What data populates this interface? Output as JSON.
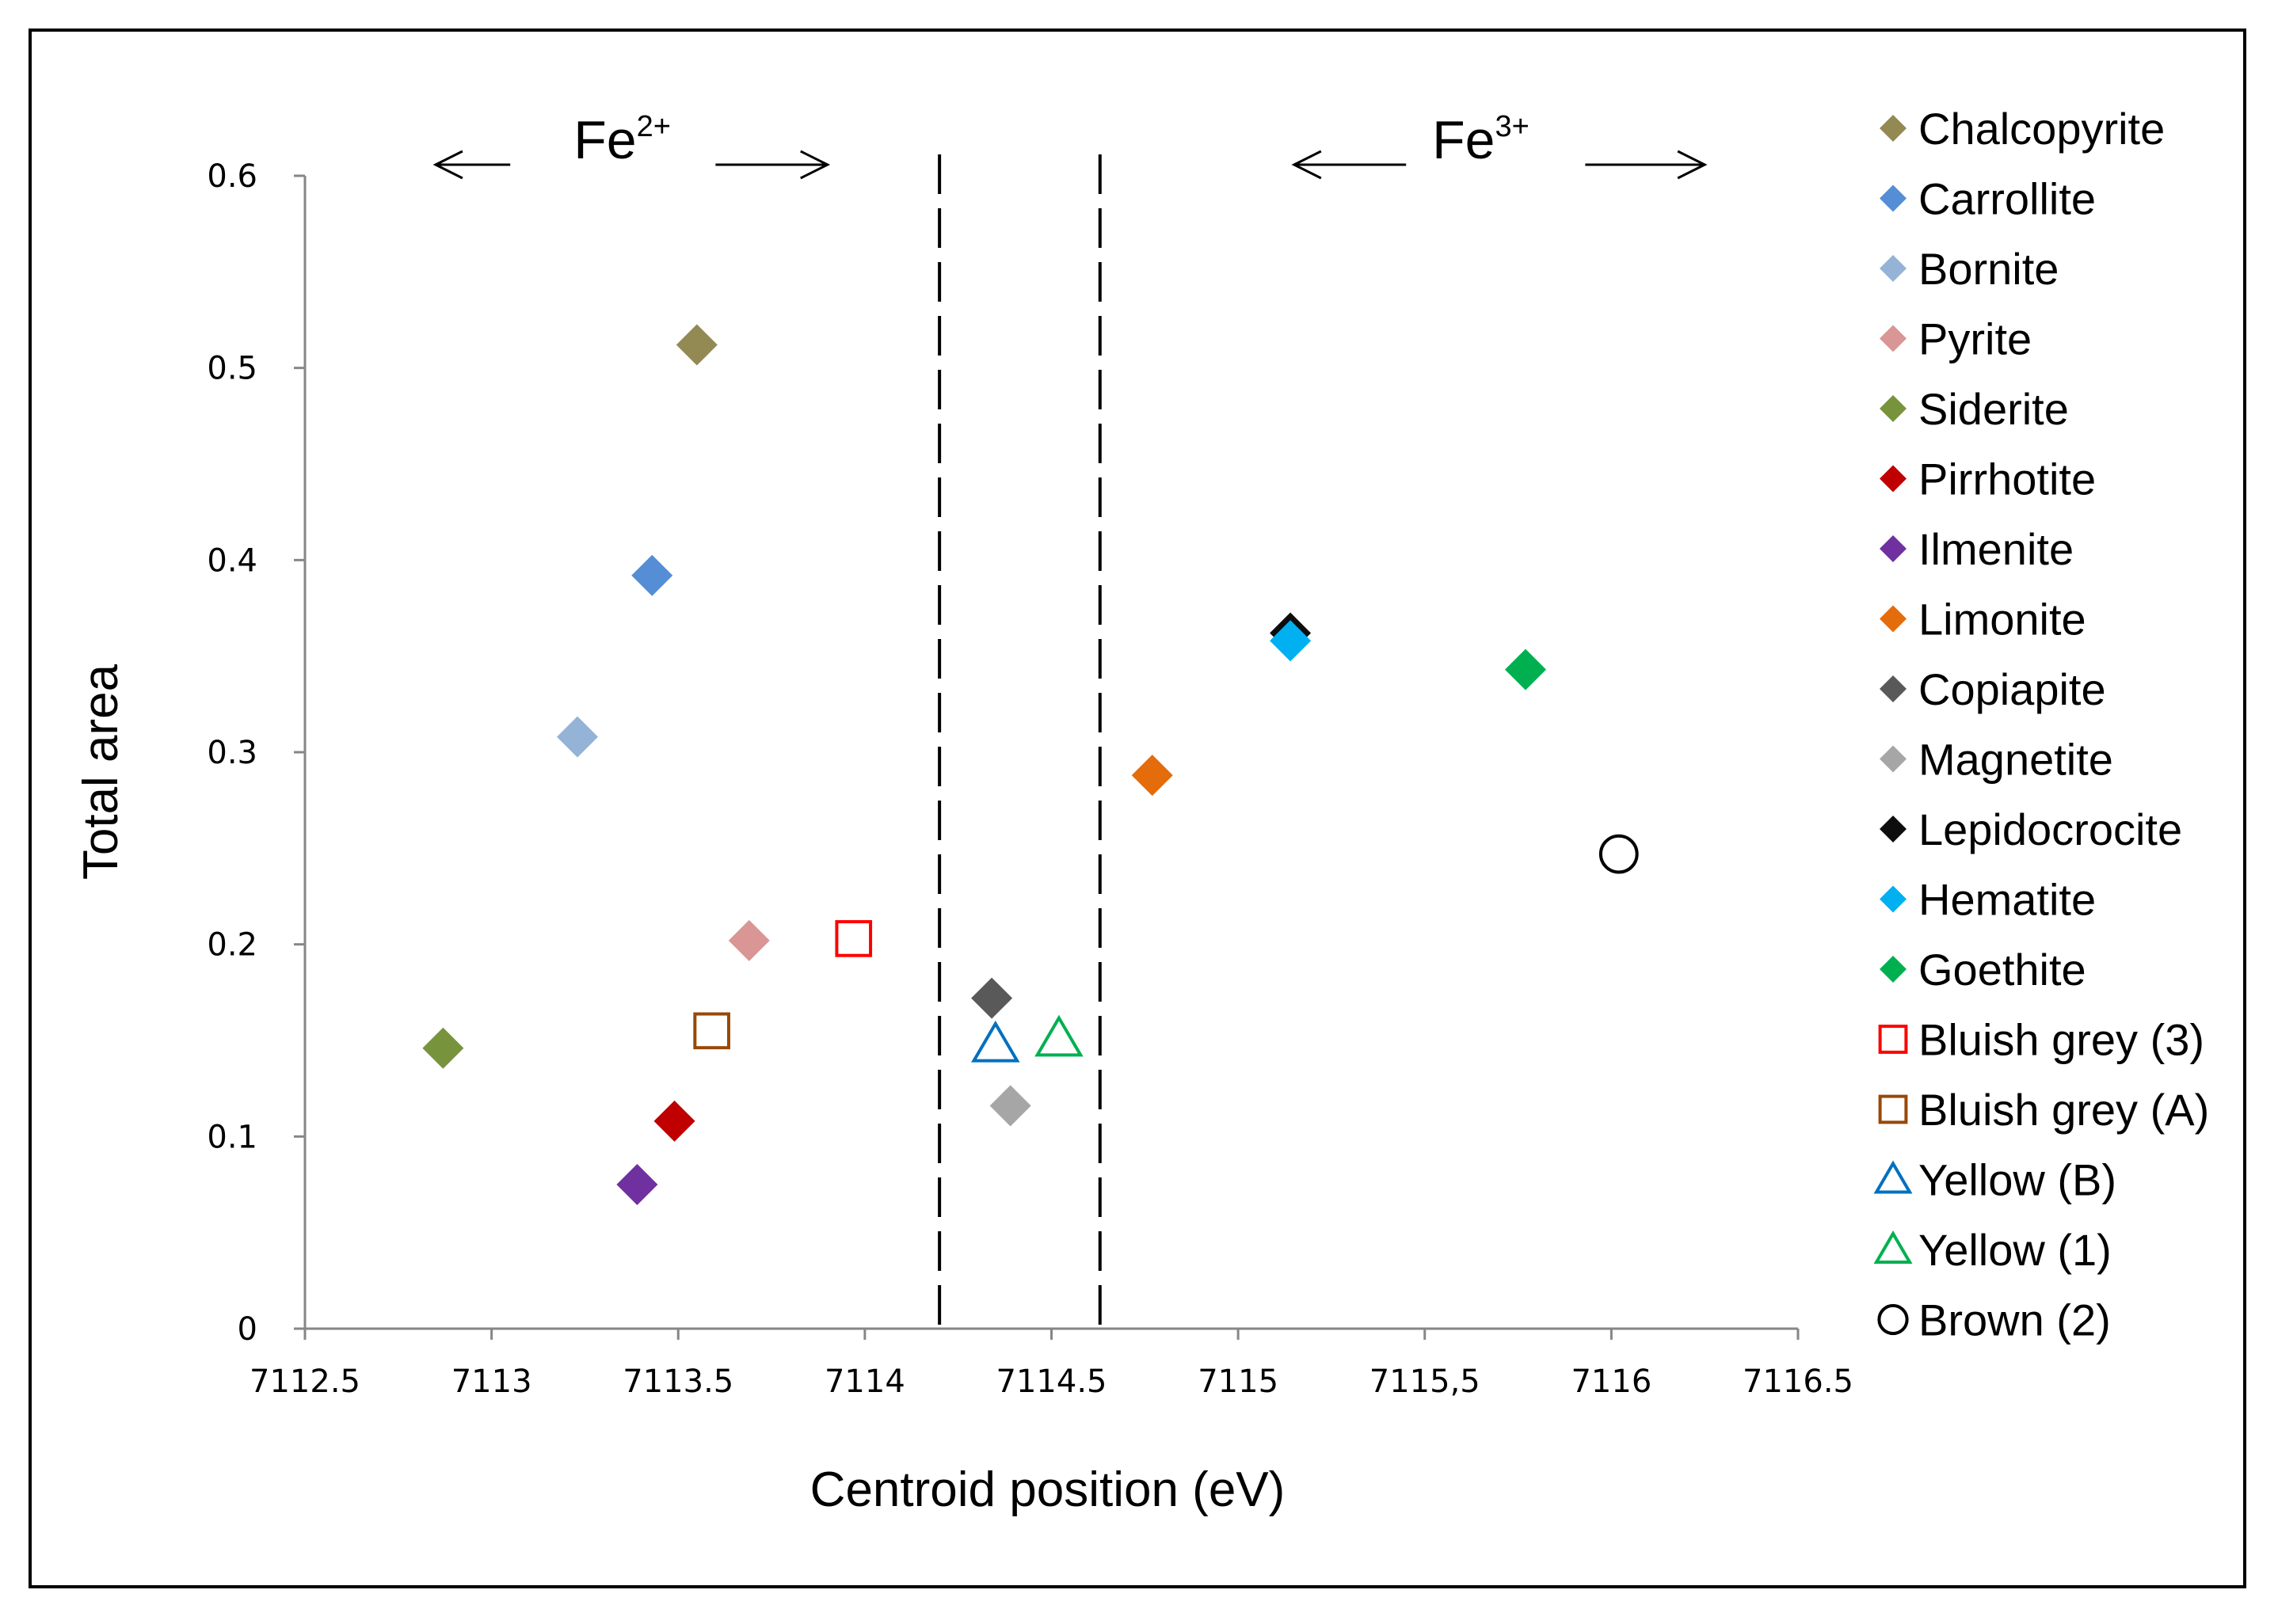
{
  "chart_data": {
    "type": "scatter",
    "xlabel": "Centroid position (eV)",
    "ylabel": "Total area",
    "xlim": [
      7112.5,
      7116.5
    ],
    "ylim": [
      0,
      0.6
    ],
    "x_ticks": [
      {
        "value": 7112.5,
        "label": "7112.5"
      },
      {
        "value": 7113,
        "label": "7113"
      },
      {
        "value": 7113.5,
        "label": "7113.5"
      },
      {
        "value": 7114,
        "label": "7114"
      },
      {
        "value": 7114.5,
        "label": "7114.5"
      },
      {
        "value": 7115,
        "label": "7115"
      },
      {
        "value": 7115.5,
        "label": "7115,5"
      },
      {
        "value": 7116,
        "label": "7116"
      },
      {
        "value": 7116.5,
        "label": "7116.5"
      }
    ],
    "y_ticks": [
      {
        "value": 0,
        "label": "0"
      },
      {
        "value": 0.1,
        "label": "0.1"
      },
      {
        "value": 0.2,
        "label": "0.2"
      },
      {
        "value": 0.3,
        "label": "0.3"
      },
      {
        "value": 0.4,
        "label": "0.4"
      },
      {
        "value": 0.5,
        "label": "0.5"
      },
      {
        "value": 0.6,
        "label": "0.6"
      }
    ],
    "divider_lines_x": [
      7114.2,
      7114.63
    ],
    "oxidation_labels": [
      {
        "base": "Fe",
        "sup": "2+",
        "x": 7113.35,
        "arrow_left": [
          7112.85,
          7113.05
        ],
        "arrow_right": [
          7113.6,
          7113.9
        ]
      },
      {
        "base": "Fe",
        "sup": "3+",
        "x": 7115.65,
        "arrow_left": [
          7115.15,
          7115.45
        ],
        "arrow_right": [
          7115.93,
          7116.25
        ]
      }
    ],
    "grid": false,
    "legend_position": "right",
    "series": [
      {
        "name": "Chalcopyrite",
        "marker": "diamond",
        "filled": true,
        "color": "#938953",
        "points": [
          {
            "x": 7113.55,
            "y": 0.512
          }
        ]
      },
      {
        "name": "Carrollite",
        "marker": "diamond",
        "filled": true,
        "color": "#558ED5",
        "points": [
          {
            "x": 7113.43,
            "y": 0.392
          }
        ]
      },
      {
        "name": "Bornite",
        "marker": "diamond",
        "filled": true,
        "color": "#95B3D7",
        "points": [
          {
            "x": 7113.23,
            "y": 0.308
          }
        ]
      },
      {
        "name": "Pyrite",
        "marker": "diamond",
        "filled": true,
        "color": "#D99694",
        "points": [
          {
            "x": 7113.69,
            "y": 0.202
          }
        ]
      },
      {
        "name": "Siderite",
        "marker": "diamond",
        "filled": true,
        "color": "#77933C",
        "points": [
          {
            "x": 7112.87,
            "y": 0.146
          }
        ]
      },
      {
        "name": "Pirrhotite",
        "marker": "diamond",
        "filled": true,
        "color": "#C00000",
        "points": [
          {
            "x": 7113.49,
            "y": 0.108
          }
        ]
      },
      {
        "name": "Ilmenite",
        "marker": "diamond",
        "filled": true,
        "color": "#7030A0",
        "points": [
          {
            "x": 7113.39,
            "y": 0.075
          }
        ]
      },
      {
        "name": "Limonite",
        "marker": "diamond",
        "filled": true,
        "color": "#E46C0A",
        "points": [
          {
            "x": 7114.77,
            "y": 0.288
          }
        ]
      },
      {
        "name": "Copiapite",
        "marker": "diamond",
        "filled": true,
        "color": "#595959",
        "points": [
          {
            "x": 7114.34,
            "y": 0.172
          }
        ]
      },
      {
        "name": "Magnetite",
        "marker": "diamond",
        "filled": true,
        "color": "#A6A6A6",
        "points": [
          {
            "x": 7114.39,
            "y": 0.116
          }
        ]
      },
      {
        "name": "Lepidocrocite",
        "marker": "diamond",
        "filled": true,
        "color": "#0D0D0D",
        "points": [
          {
            "x": 7115.14,
            "y": 0.362
          }
        ]
      },
      {
        "name": "Hematite",
        "marker": "diamond",
        "filled": true,
        "color": "#00B0F0",
        "points": [
          {
            "x": 7115.14,
            "y": 0.358
          }
        ]
      },
      {
        "name": "Goethite",
        "marker": "diamond",
        "filled": true,
        "color": "#00B050",
        "points": [
          {
            "x": 7115.77,
            "y": 0.343
          }
        ]
      },
      {
        "name": "Bluish grey (3)",
        "marker": "square",
        "filled": false,
        "color": "#FF0000",
        "points": [
          {
            "x": 7113.97,
            "y": 0.203
          }
        ]
      },
      {
        "name": "Bluish grey (A)",
        "marker": "square",
        "filled": false,
        "color": "#984807",
        "points": [
          {
            "x": 7113.59,
            "y": 0.155
          }
        ]
      },
      {
        "name": "Yellow (B)",
        "marker": "triangle",
        "filled": false,
        "color": "#0070C0",
        "points": [
          {
            "x": 7114.35,
            "y": 0.148
          }
        ]
      },
      {
        "name": "Yellow (1)",
        "marker": "triangle",
        "filled": false,
        "color": "#00B050",
        "points": [
          {
            "x": 7114.52,
            "y": 0.151
          }
        ]
      },
      {
        "name": "Brown (2)",
        "marker": "circle",
        "filled": false,
        "color": "#000000",
        "points": [
          {
            "x": 7116.02,
            "y": 0.247
          }
        ]
      }
    ]
  }
}
